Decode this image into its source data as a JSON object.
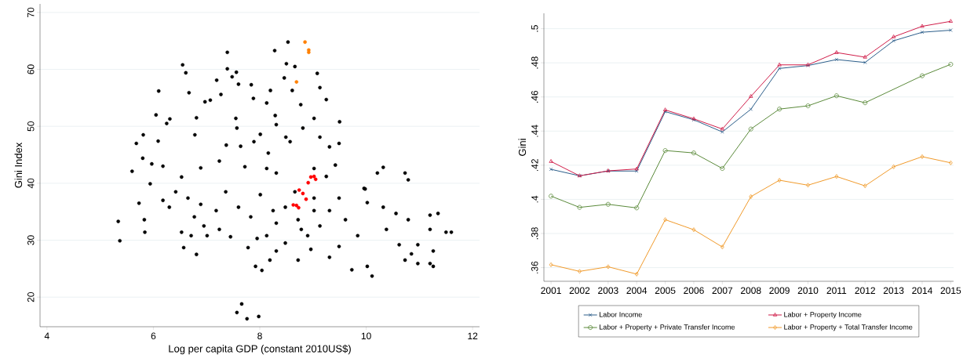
{
  "chart_data": [
    {
      "type": "scatter",
      "xlabel": "Log per capita GDP (constant 2010US$)",
      "ylabel": "Gini Index",
      "xlim": [
        3.87,
        12.13
      ],
      "ylim": [
        14.8,
        71.5
      ],
      "xticks": [
        4,
        6,
        8,
        10,
        12
      ],
      "yticks": [
        20,
        30,
        40,
        50,
        60,
        70
      ],
      "grid": "y",
      "series": [
        {
          "color": "#000000",
          "marker": "circle",
          "x": [
            5.6,
            5.68,
            5.81,
            5.8,
            6.05,
            6.1,
            6.09,
            6.31,
            6.25,
            6.55,
            6.61,
            6.67,
            6.81,
            6.78,
            6.97,
            7.07,
            7.19,
            7.27,
            7.39,
            7.39,
            7.48,
            7.56,
            7.6,
            7.55,
            7.57,
            7.37,
            7.64,
            7.84,
            7.88,
            8.2,
            8.28,
            8.13,
            8.29,
            8.31,
            8.53,
            8.5,
            8.66,
            8.46,
            8.61,
            8.77,
            9.08,
            9.13,
            9.25,
            9.5,
            9.49,
            9.02,
            9.13,
            8.81,
            8.49,
            8.16,
            8.01,
            7.89,
            9.31,
            9.42,
            8.57,
            9.98,
            10.32,
            10.21,
            10.73,
            10.79,
            9.25,
            6.89,
            6.53,
            6.18,
            5.97,
            7.24,
            7.72,
            8.13,
            8.31,
            9.02,
            5.34,
            5.37,
            5.73,
            5.83,
            5.84,
            5.94,
            6.18,
            6.3,
            6.53,
            6.57,
            6.71,
            6.77,
            6.81,
            6.89,
            6.95,
            7.18,
            7.36,
            7.45,
            7.57,
            7.66,
            7.76,
            7.98,
            7.78,
            7.92,
            8.04,
            7.95,
            8.19,
            8.31,
            8.48,
            8.72,
            8.96,
            9.31,
            9.73,
            10.02,
            10.11,
            9.49,
            9.31,
            9.02,
            9.49,
            9.61,
            9.84,
            9.96,
            10.02,
            10.32,
            10.38,
            10.56,
            10.79,
            10.62,
            10.73,
            10.85,
            10.97,
            10.97,
            11.2,
            11.2,
            11.2,
            11.26,
            11.35,
            11.5,
            11.6,
            11.26,
            9.02,
            8.72,
            8.66,
            8.48,
            8.31,
            8.13,
            7.83,
            8.01,
            7.6,
            8.25,
            8.9,
            9.13,
            8.78,
            7.24,
            7.01,
            6.65,
            6.42
          ],
          "values": [
            42.1,
            47.0,
            48.5,
            44.4,
            52.0,
            56.2,
            47.4,
            51.3,
            50.5,
            60.8,
            59.4,
            55.9,
            51.5,
            48.5,
            54.3,
            54.6,
            58.1,
            55.6,
            63.0,
            60.1,
            58.7,
            59.5,
            57.4,
            51.4,
            49.7,
            46.7,
            46.5,
            57.3,
            54.9,
            56.3,
            63.3,
            54.1,
            51.9,
            50.3,
            64.8,
            61.0,
            60.5,
            58.5,
            56.3,
            53.8,
            59.3,
            56.8,
            54.7,
            50.8,
            47.0,
            51.4,
            48.1,
            49.7,
            48.1,
            45.3,
            48.6,
            47.3,
            46.4,
            43.2,
            47.3,
            39.0,
            42.8,
            41.8,
            41.8,
            40.6,
            41.2,
            42.7,
            41.1,
            43.0,
            43.4,
            43.9,
            42.9,
            42.6,
            41.8,
            42.6,
            33.3,
            29.9,
            36.5,
            33.6,
            31.4,
            39.9,
            37.0,
            35.8,
            31.4,
            28.7,
            30.8,
            34.1,
            27.5,
            36.3,
            32.5,
            35.2,
            38.5,
            30.6,
            17.3,
            18.8,
            16.2,
            16.6,
            28.7,
            25.4,
            24.7,
            30.3,
            26.5,
            28.1,
            29.5,
            26.5,
            28.4,
            27.0,
            24.8,
            25.4,
            23.7,
            28.9,
            35.2,
            35.2,
            37.4,
            33.6,
            30.8,
            39.1,
            36.6,
            35.8,
            31.9,
            34.7,
            33.6,
            29.2,
            26.5,
            27.6,
            25.9,
            29.2,
            34.4,
            31.9,
            25.9,
            28.1,
            34.7,
            31.4,
            31.4,
            25.4,
            37.4,
            33.6,
            38.5,
            35.8,
            33.0,
            30.8,
            34.1,
            38.0,
            35.8,
            35.2,
            30.8,
            32.5,
            31.9,
            31.9,
            30.8,
            37.4,
            38.5
          ]
        },
        {
          "color": "#ff8000",
          "marker": "circle",
          "x": [
            8.85,
            8.92,
            8.92,
            8.69
          ],
          "values": [
            64.8,
            63.4,
            63.0,
            57.8
          ]
        },
        {
          "color": "#ff0000",
          "marker": "circle",
          "x": [
            8.91,
            8.96,
            9.02,
            9.05,
            8.74,
            8.81,
            8.87,
            8.63,
            8.69,
            8.73
          ],
          "values": [
            40.1,
            41.1,
            41.2,
            40.7,
            38.8,
            38.2,
            37.2,
            36.2,
            36.1,
            35.7
          ]
        }
      ]
    },
    {
      "type": "line",
      "ylabel": "Gini",
      "x": [
        2001,
        2002,
        2003,
        2004,
        2005,
        2006,
        2007,
        2008,
        2009,
        2010,
        2011,
        2012,
        2013,
        2014,
        2015
      ],
      "xlim": [
        2000.75,
        2015.1
      ],
      "ylim": [
        0.352,
        0.509
      ],
      "xticks": [
        2001,
        2002,
        2003,
        2004,
        2005,
        2006,
        2007,
        2008,
        2009,
        2010,
        2011,
        2012,
        2013,
        2014,
        2015
      ],
      "yticks": [
        {
          "value": 0.36,
          "label": ".36"
        },
        {
          "value": 0.38,
          "label": ".38"
        },
        {
          "value": 0.4,
          "label": ".4"
        },
        {
          "value": 0.42,
          "label": ".42"
        },
        {
          "value": 0.44,
          "label": ".44"
        },
        {
          "value": 0.46,
          "label": ".46"
        },
        {
          "value": 0.48,
          "label": ".48"
        },
        {
          "value": 0.5,
          "label": ".5"
        }
      ],
      "grid": "y",
      "legend": "bottom",
      "series": [
        {
          "name": "Labor Income",
          "color": "#2b5d8a",
          "marker": "cross",
          "values": [
            0.4176,
            0.4138,
            0.4166,
            0.4166,
            0.4514,
            0.4466,
            0.4395,
            0.4528,
            0.4767,
            0.4784,
            0.4819,
            0.4802,
            0.4929,
            0.4979,
            0.4991
          ]
        },
        {
          "name": "Labor + Property Income",
          "color": "#d01c48",
          "marker": "triangle",
          "values": [
            0.4222,
            0.4138,
            0.4167,
            0.4178,
            0.4524,
            0.4472,
            0.4412,
            0.4603,
            0.4788,
            0.4788,
            0.486,
            0.4833,
            0.4952,
            0.5014,
            0.5043
          ]
        },
        {
          "name": "Labor + Property + Private Transfer Income",
          "color": "#5a8a3a",
          "marker": "circle",
          "values": [
            0.4019,
            0.3953,
            0.3971,
            0.395,
            0.4286,
            0.4272,
            0.4181,
            0.4412,
            0.4529,
            0.4548,
            0.4607,
            0.4566,
            null,
            0.4724,
            0.4791
          ]
        },
        {
          "name": "Labor + Property + Total Transfer Income",
          "color": "#f09a2a",
          "marker": "diamond",
          "values": [
            0.3617,
            0.3578,
            0.3605,
            0.3562,
            0.3881,
            0.3822,
            0.3721,
            0.4016,
            0.4112,
            0.4083,
            0.4134,
            0.4079,
            0.4191,
            0.425,
            0.4214
          ]
        }
      ]
    }
  ]
}
